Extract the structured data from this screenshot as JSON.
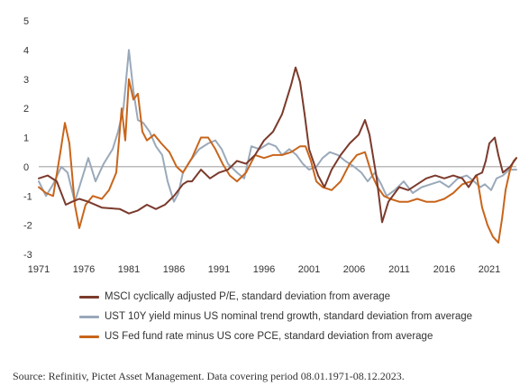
{
  "chart_data": {
    "type": "line",
    "title": "",
    "xlabel": "",
    "ylabel": "",
    "xlim": [
      1971.0,
      2024.0
    ],
    "ylim": [
      -3,
      5
    ],
    "grid": false,
    "zero_line": true,
    "legend_position": "bottom",
    "x_ticks": [
      "1971",
      "1976",
      "1981",
      "1986",
      "1991",
      "1996",
      "2001",
      "2006",
      "2011",
      "2016",
      "2021"
    ],
    "x_tick_values": [
      1971,
      1976,
      1981,
      1986,
      1991,
      1996,
      2001,
      2006,
      2011,
      2016,
      2021
    ],
    "y_ticks": [
      "5",
      "4",
      "3",
      "2",
      "1",
      "0",
      "-1",
      "-2",
      "-3"
    ],
    "y_tick_values": [
      5,
      4,
      3,
      2,
      1,
      0,
      -1,
      -2,
      -3
    ],
    "series": [
      {
        "name": "MSCI cyclically adjusted P/E, standard deviation from average",
        "color": "#7b3a2c",
        "x": [
          1971.0,
          1972.0,
          1973.0,
          1974.0,
          1974.7,
          1975.5,
          1976.5,
          1978.0,
          1980.0,
          1981.0,
          1982.0,
          1983.0,
          1984.0,
          1985.0,
          1986.0,
          1987.0,
          1987.5,
          1988.0,
          1989.0,
          1990.0,
          1991.0,
          1992.0,
          1993.0,
          1994.0,
          1995.0,
          1996.0,
          1997.0,
          1998.0,
          1999.0,
          1999.5,
          2000.0,
          2000.5,
          2001.0,
          2002.0,
          2002.7,
          2003.5,
          2004.5,
          2005.5,
          2006.5,
          2007.2,
          2007.7,
          2008.5,
          2009.1,
          2009.8,
          2011.0,
          2012.0,
          2013.0,
          2014.0,
          2015.0,
          2016.0,
          2017.0,
          2018.0,
          2018.7,
          2019.5,
          2020.2,
          2020.6,
          2021.0,
          2021.6,
          2022.0,
          2022.5,
          2023.3,
          2024.0
        ],
        "values": [
          -0.4,
          -0.3,
          -0.5,
          -1.3,
          -1.2,
          -1.1,
          -1.2,
          -1.4,
          -1.45,
          -1.6,
          -1.5,
          -1.3,
          -1.45,
          -1.3,
          -1.0,
          -0.6,
          -0.5,
          -0.5,
          -0.1,
          -0.4,
          -0.2,
          -0.1,
          0.2,
          0.1,
          0.4,
          0.9,
          1.2,
          1.8,
          2.8,
          3.4,
          2.9,
          1.8,
          0.6,
          -0.3,
          -0.7,
          -0.1,
          0.4,
          0.8,
          1.1,
          1.6,
          1.1,
          -0.4,
          -1.9,
          -1.2,
          -0.7,
          -0.8,
          -0.6,
          -0.4,
          -0.3,
          -0.4,
          -0.3,
          -0.4,
          -0.7,
          -0.3,
          -0.2,
          0.2,
          0.8,
          1.0,
          0.4,
          -0.2,
          0.0,
          0.3
        ]
      },
      {
        "name": "UST 10Y yield minus US nominal trend growth, standard deviation from average",
        "color": "#9aa9ba",
        "x": [
          1971.0,
          1971.8,
          1972.6,
          1973.5,
          1974.2,
          1975.0,
          1975.8,
          1976.5,
          1977.3,
          1978.2,
          1979.2,
          1979.8,
          1980.4,
          1981.0,
          1981.5,
          1982.0,
          1982.6,
          1983.3,
          1984.0,
          1984.7,
          1985.3,
          1986.0,
          1986.5,
          1987.0,
          1987.8,
          1988.8,
          1989.8,
          1990.6,
          1991.3,
          1992.0,
          1993.0,
          1993.8,
          1994.6,
          1995.5,
          1996.5,
          1997.3,
          1998.0,
          1998.8,
          1999.6,
          2000.3,
          2001.0,
          2001.8,
          2002.5,
          2003.3,
          2004.2,
          2005.0,
          2006.0,
          2006.8,
          2007.5,
          2008.3,
          2009.0,
          2009.6,
          2010.5,
          2011.5,
          2012.5,
          2013.5,
          2014.5,
          2015.5,
          2016.5,
          2017.5,
          2018.5,
          2019.3,
          2020.0,
          2020.5,
          2021.2,
          2021.8,
          2022.5,
          2023.2,
          2024.0
        ],
        "values": [
          -0.5,
          -1.0,
          -0.6,
          0.0,
          -0.2,
          -1.2,
          -0.4,
          0.3,
          -0.5,
          0.1,
          0.6,
          1.2,
          2.0,
          4.0,
          2.6,
          1.6,
          1.5,
          1.2,
          0.7,
          0.4,
          -0.5,
          -1.2,
          -0.9,
          -0.2,
          0.2,
          0.6,
          0.8,
          0.9,
          0.6,
          0.1,
          -0.2,
          -0.4,
          0.7,
          0.6,
          0.8,
          0.7,
          0.4,
          0.6,
          0.4,
          0.1,
          -0.1,
          0.0,
          0.3,
          0.5,
          0.4,
          0.2,
          0.0,
          -0.2,
          -0.5,
          -0.2,
          -0.6,
          -1.0,
          -0.8,
          -0.5,
          -0.9,
          -0.7,
          -0.6,
          -0.5,
          -0.7,
          -0.4,
          -0.3,
          -0.5,
          -0.7,
          -0.6,
          -0.8,
          -0.4,
          -0.3,
          -0.1,
          -0.1
        ]
      },
      {
        "name": "US Fed fund rate minus US core PCE, standard deviation from average",
        "color": "#c8651b",
        "x": [
          1971.0,
          1971.8,
          1972.6,
          1973.4,
          1973.9,
          1974.4,
          1975.0,
          1975.5,
          1976.2,
          1977.0,
          1978.0,
          1978.8,
          1979.6,
          1980.2,
          1980.6,
          1981.0,
          1981.5,
          1982.0,
          1982.5,
          1983.0,
          1983.8,
          1984.6,
          1985.5,
          1986.3,
          1987.0,
          1988.0,
          1989.0,
          1989.8,
          1990.6,
          1991.4,
          1992.2,
          1993.0,
          1994.0,
          1995.0,
          1996.0,
          1997.0,
          1998.0,
          1999.0,
          2000.0,
          2000.6,
          2001.2,
          2001.8,
          2002.5,
          2003.5,
          2004.5,
          2005.5,
          2006.3,
          2007.2,
          2008.0,
          2008.6,
          2009.3,
          2010.0,
          2011.0,
          2012.0,
          2013.0,
          2014.0,
          2015.0,
          2016.0,
          2017.0,
          2018.0,
          2019.0,
          2019.6,
          2020.2,
          2020.8,
          2021.4,
          2022.0,
          2022.4,
          2022.8,
          2023.3,
          2023.7,
          2024.0
        ],
        "values": [
          -0.7,
          -0.9,
          -1.0,
          0.5,
          1.5,
          0.8,
          -1.3,
          -2.1,
          -1.3,
          -1.0,
          -1.1,
          -0.8,
          -0.2,
          2.0,
          0.9,
          3.0,
          2.3,
          2.5,
          1.2,
          0.9,
          1.1,
          0.8,
          0.5,
          0.0,
          -0.2,
          0.3,
          1.0,
          1.0,
          0.6,
          0.1,
          -0.3,
          -0.5,
          -0.2,
          0.4,
          0.3,
          0.4,
          0.4,
          0.5,
          0.7,
          0.7,
          0.2,
          -0.5,
          -0.7,
          -0.8,
          -0.5,
          0.1,
          0.4,
          0.5,
          -0.3,
          -0.7,
          -1.0,
          -1.1,
          -1.2,
          -1.2,
          -1.1,
          -1.2,
          -1.2,
          -1.1,
          -0.9,
          -0.6,
          -0.5,
          -0.3,
          -1.4,
          -2.0,
          -2.4,
          -2.6,
          -1.8,
          -0.8,
          -0.1,
          0.2,
          0.3
        ]
      }
    ]
  },
  "source": "Source: Refinitiv, Pictet Asset Management. Data covering period 08.01.1971-08.12.2023."
}
